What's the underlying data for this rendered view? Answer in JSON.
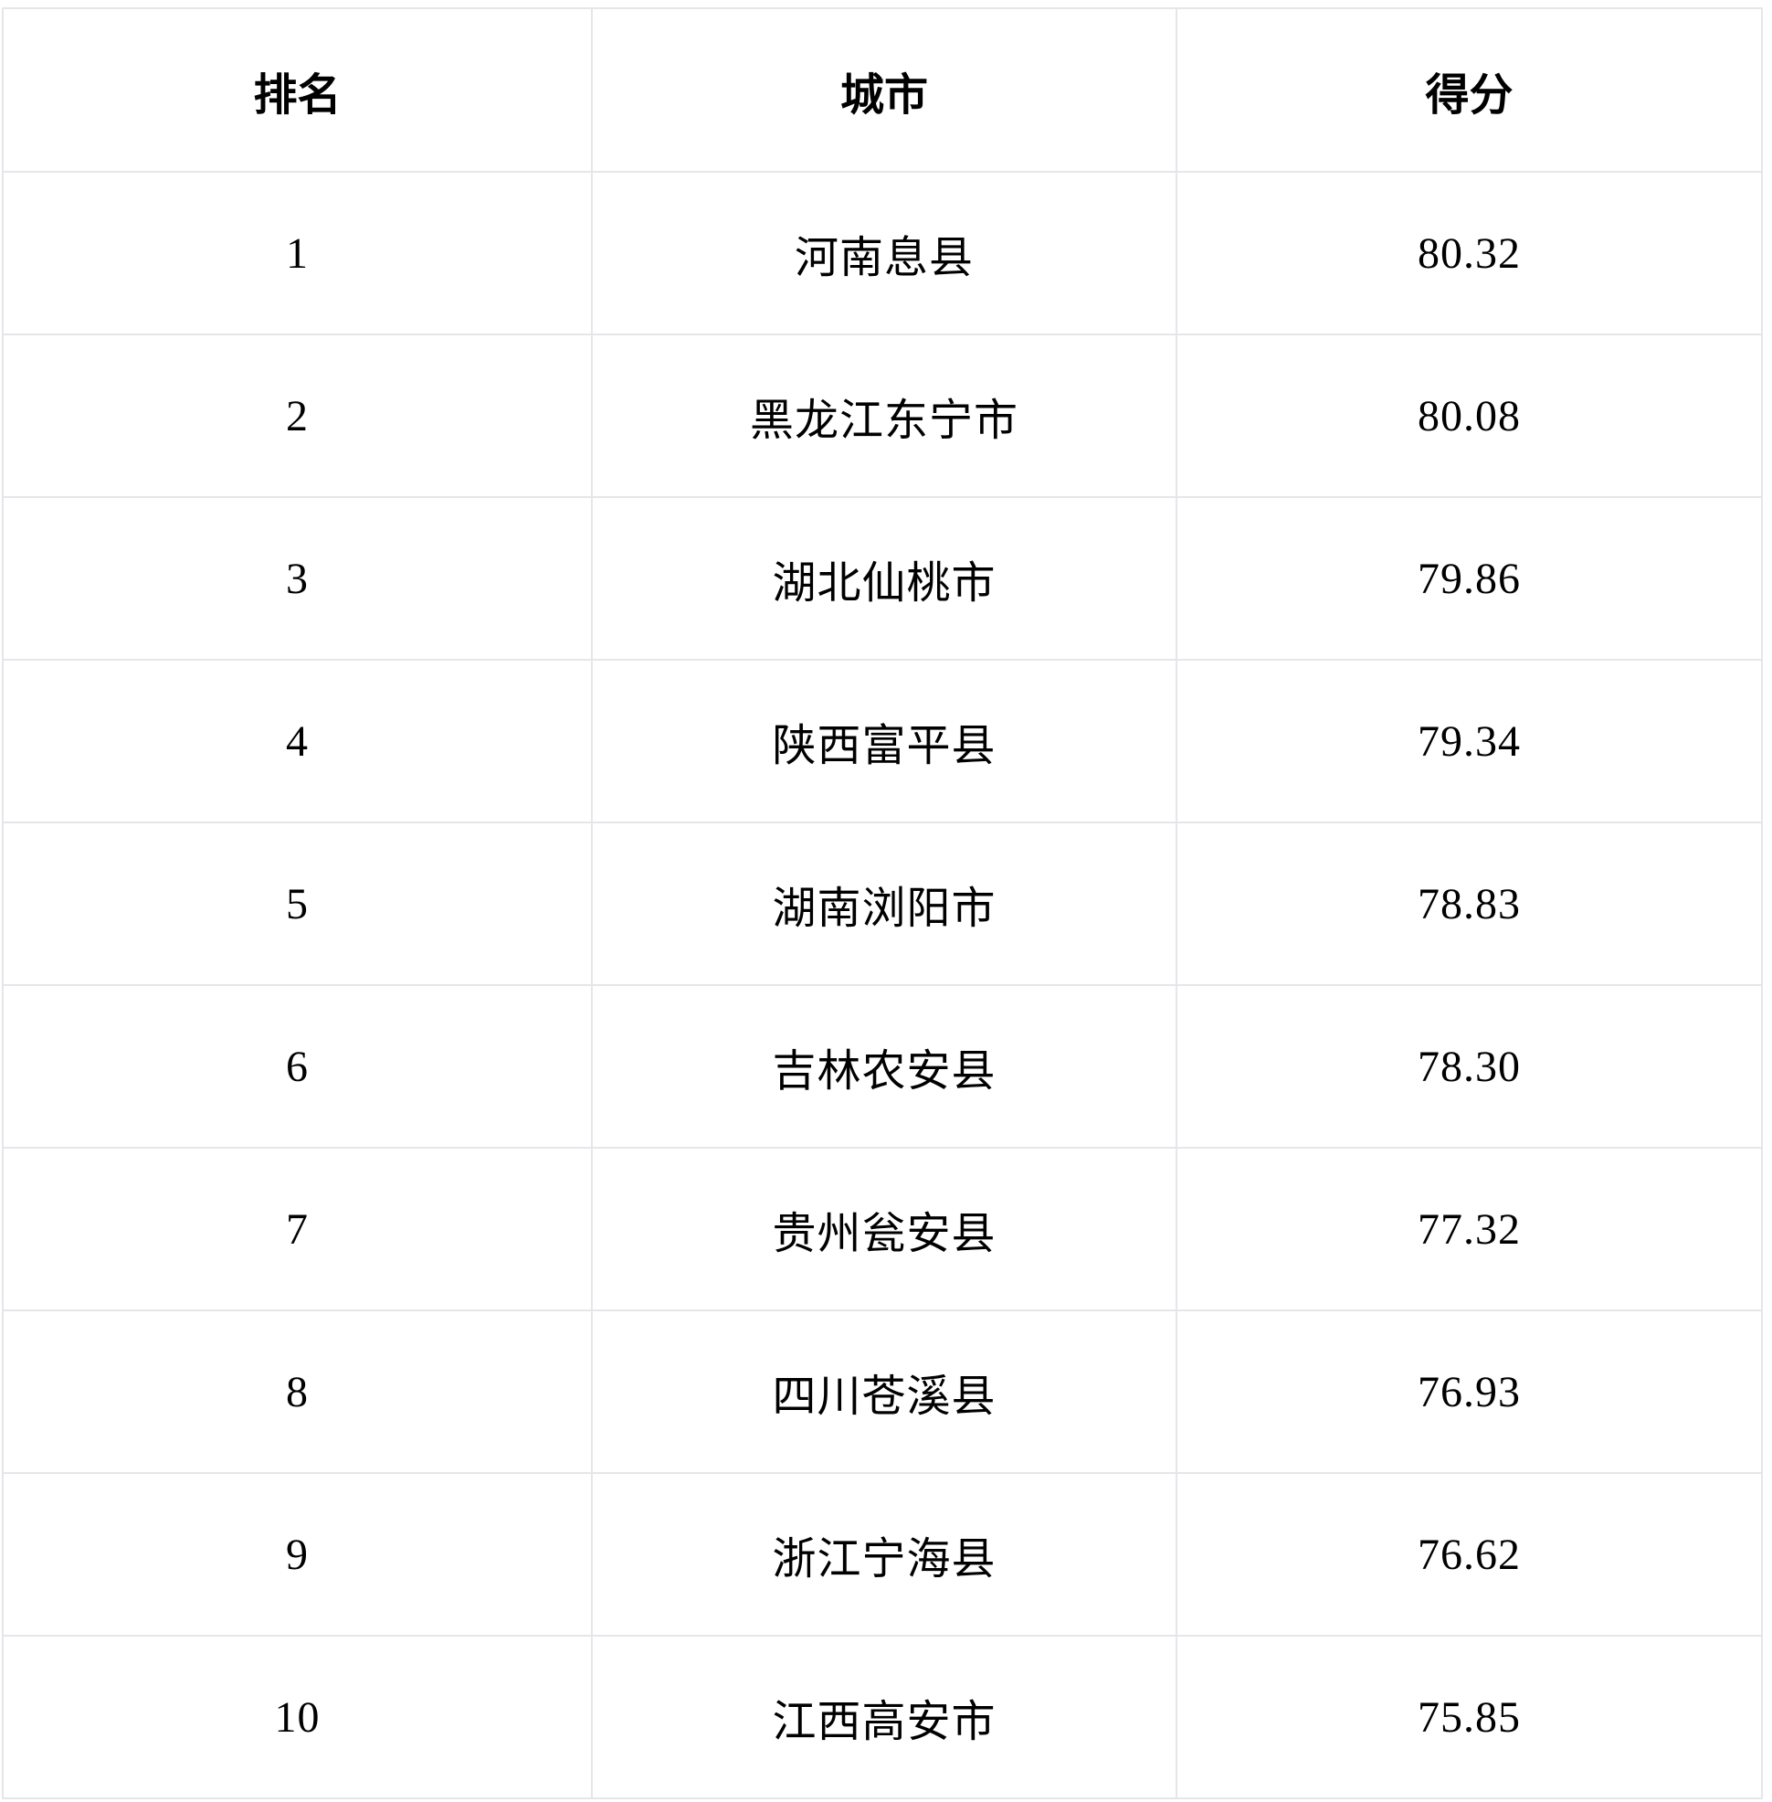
{
  "chart_data": {
    "type": "table",
    "columns": [
      "排名",
      "城市",
      "得分"
    ],
    "rows": [
      [
        "1",
        "河南息县",
        "80.32"
      ],
      [
        "2",
        "黑龙江东宁市",
        "80.08"
      ],
      [
        "3",
        "湖北仙桃市",
        "79.86"
      ],
      [
        "4",
        "陕西富平县",
        "79.34"
      ],
      [
        "5",
        "湖南浏阳市",
        "78.83"
      ],
      [
        "6",
        "吉林农安县",
        "78.30"
      ],
      [
        "7",
        "贵州瓮安县",
        "77.32"
      ],
      [
        "8",
        "四川苍溪县",
        "76.93"
      ],
      [
        "9",
        "浙江宁海县",
        "76.62"
      ],
      [
        "10",
        "江西高安市",
        "75.85"
      ]
    ]
  },
  "table": {
    "headers": {
      "rank": "排名",
      "city": "城市",
      "score": "得分"
    },
    "rows": [
      {
        "rank": "1",
        "city": "河南息县",
        "score": "80.32"
      },
      {
        "rank": "2",
        "city": "黑龙江东宁市",
        "score": "80.08"
      },
      {
        "rank": "3",
        "city": "湖北仙桃市",
        "score": "79.86"
      },
      {
        "rank": "4",
        "city": "陕西富平县",
        "score": "79.34"
      },
      {
        "rank": "5",
        "city": "湖南浏阳市",
        "score": "78.83"
      },
      {
        "rank": "6",
        "city": "吉林农安县",
        "score": "78.30"
      },
      {
        "rank": "7",
        "city": "贵州瓮安县",
        "score": "77.32"
      },
      {
        "rank": "8",
        "city": "四川苍溪县",
        "score": "76.93"
      },
      {
        "rank": "9",
        "city": "浙江宁海县",
        "score": "76.62"
      },
      {
        "rank": "10",
        "city": "江西高安市",
        "score": "75.85"
      }
    ]
  },
  "colors": {
    "border": "#e4e6ea",
    "text": "#000000",
    "background": "#ffffff"
  }
}
